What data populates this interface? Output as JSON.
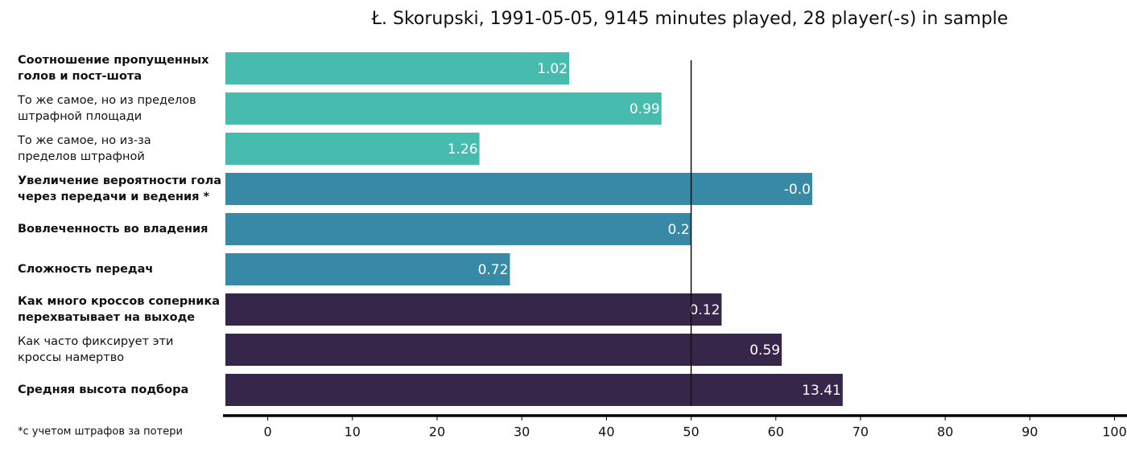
{
  "chart_data": {
    "type": "barh",
    "title": "Ł. Skorupski, 1991-05-05, 9145 minutes played, 28 player(-s) in sample",
    "categories": [
      "Соотношение пропущенных\nголов и пост-шота",
      "То же самое, но из пределов\nштрафной площади",
      "То же самое, но из-за\nпределов штрафной",
      "Увеличение вероятности гола\nчерез передачи и ведения *",
      "Вовлеченность во владения",
      "Сложность передач",
      "Как много кроссов соперника\nперехватывает на выходе",
      "Как часто фиксирует эти\nкроссы намертво",
      "Средняя высота подбора"
    ],
    "category_bold": [
      true,
      false,
      false,
      true,
      true,
      true,
      true,
      false,
      true
    ],
    "values": [
      35.6,
      46.5,
      25,
      64.3,
      50,
      28.6,
      53.6,
      60.7,
      67.9
    ],
    "value_labels": [
      "1.02",
      "0.99",
      "1.26",
      "-0.0",
      "0.2",
      "0.72",
      "0.12",
      "0.59",
      "13.41"
    ],
    "colors": [
      "#47bcae",
      "#47bcae",
      "#47bcae",
      "#3789a5",
      "#3789a5",
      "#3789a5",
      "#35264a",
      "#35264a",
      "#35264a"
    ],
    "reference_line": 50,
    "xlim": [
      -5,
      100
    ],
    "xticks": [
      0,
      10,
      20,
      30,
      40,
      50,
      60,
      70,
      80,
      90,
      100
    ],
    "footnote": "*с учетом штрафов за потери"
  }
}
